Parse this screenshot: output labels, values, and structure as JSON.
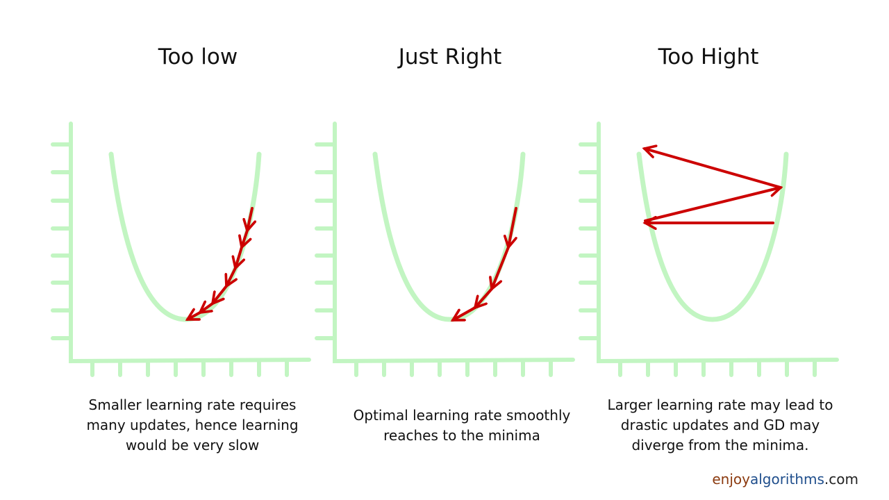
{
  "panels": [
    {
      "title": "Too low",
      "caption": [
        "Smaller learning rate requires",
        "many updates, hence learning",
        "would be very slow"
      ]
    },
    {
      "title": "Just Right",
      "caption": [
        "Optimal learning rate smoothly",
        "reaches to the minima"
      ]
    },
    {
      "title": "Too Hight",
      "caption": [
        "Larger learning rate may lead to",
        "drastic updates and GD may",
        "diverge from the minima."
      ]
    }
  ],
  "footer": {
    "brand": [
      "enjoy",
      "algorithms",
      ".com"
    ]
  }
}
